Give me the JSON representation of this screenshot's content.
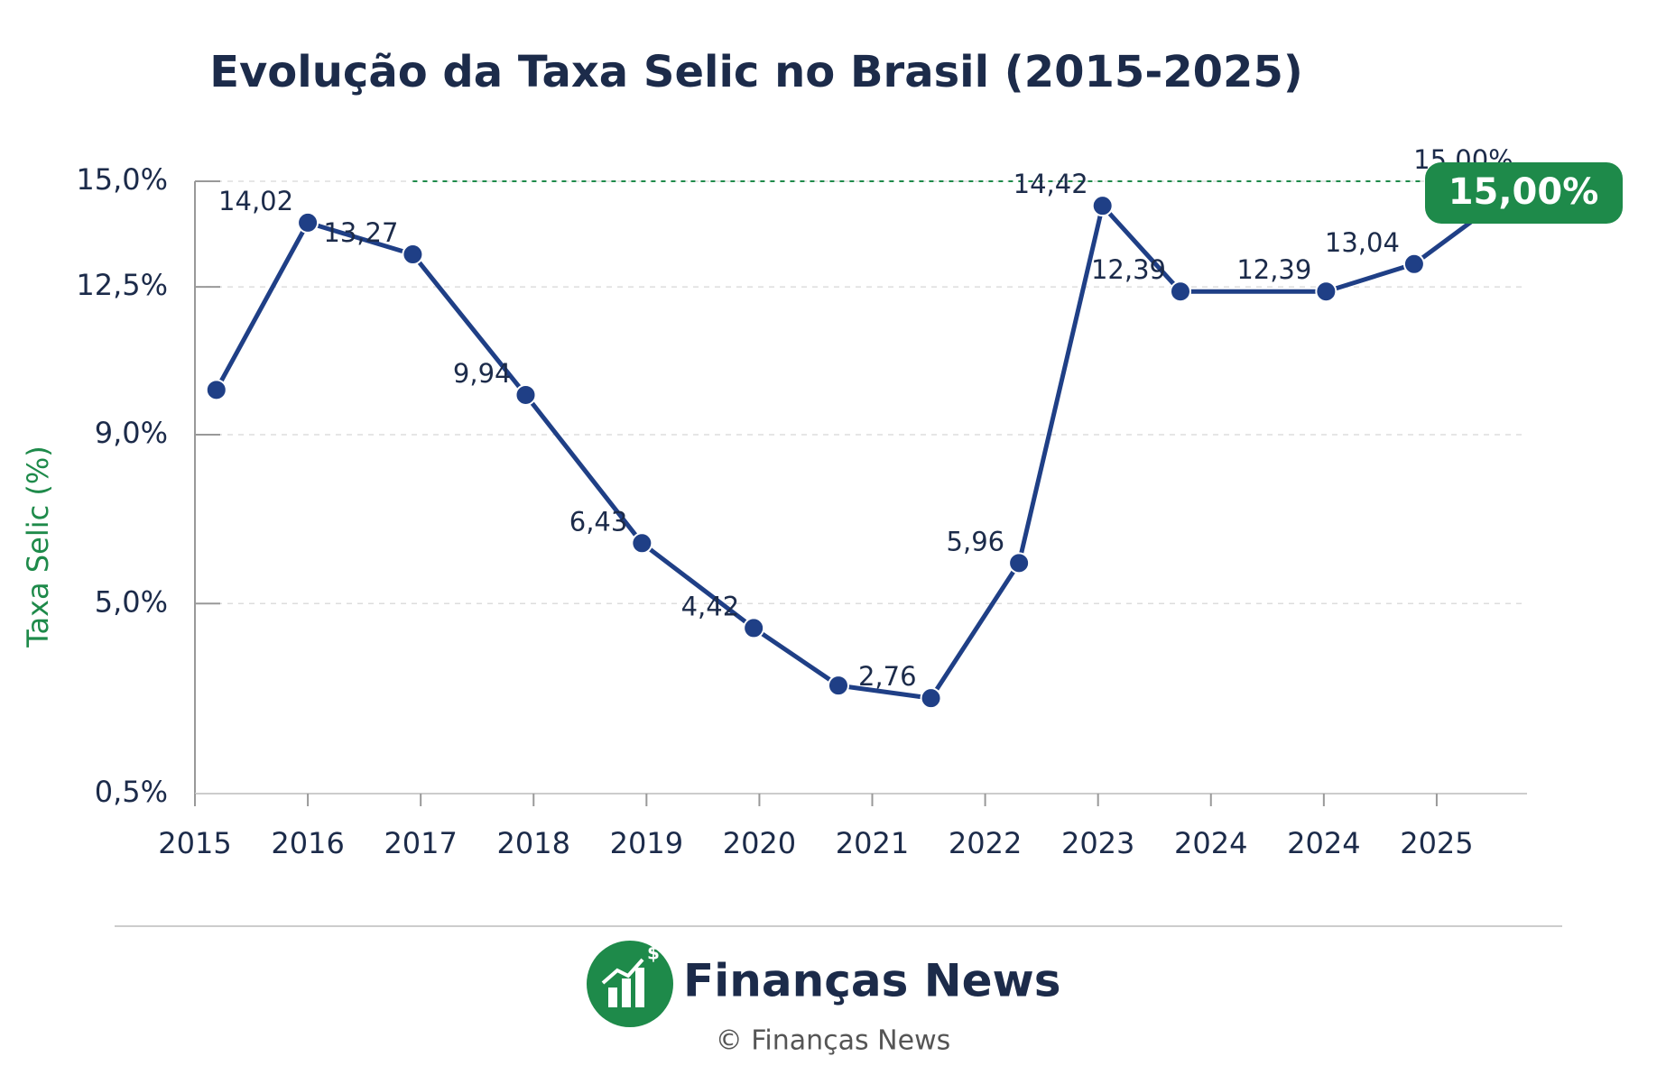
{
  "chart_data": {
    "type": "line",
    "title": "Evolução da Taxa Selic no Brasil (2015-2025)",
    "y_label": "Taxa Selic (%)",
    "categories": [
      "2015",
      "2016",
      "2017",
      "2018",
      "2019",
      "2020",
      "2021",
      "2022",
      "2023",
      "2024",
      "2024",
      "2025"
    ],
    "xlim": [
      0,
      11.8
    ],
    "ylim": [
      0.5,
      15
    ],
    "yticks": [
      {
        "value": 15,
        "label": "15,0%"
      },
      {
        "value": 12.5,
        "label": "12,5%"
      },
      {
        "value": 9,
        "label": "9,0%"
      },
      {
        "value": 5,
        "label": "5,0%"
      },
      {
        "value": 0.5,
        "label": "0,5%"
      }
    ],
    "grid": true,
    "series": [
      {
        "color": "#1f3f86",
        "x": [
          0.19,
          1.0,
          1.93,
          2.93,
          3.96,
          4.95,
          5.7,
          6.52,
          7.3,
          8.04,
          8.73,
          10.02,
          10.8,
          11.79
        ],
        "values": [
          10.06,
          14.02,
          13.27,
          9.94,
          6.43,
          4.42,
          3.06,
          2.76,
          5.96,
          14.42,
          12.39,
          12.39,
          13.04,
          15.0
        ],
        "value_labels": [
          null,
          "14,02",
          "13,27",
          "9,94",
          "6,43",
          "4,42",
          null,
          "2,76",
          "5,96",
          "14,42",
          "12,39",
          "12,39",
          "13,04",
          "15,00%"
        ]
      }
    ],
    "callout": "15,00%",
    "highlight_color": "#1e8a4a"
  },
  "footer": {
    "brand": "Finanças News",
    "copyright": "© Finanças News"
  }
}
